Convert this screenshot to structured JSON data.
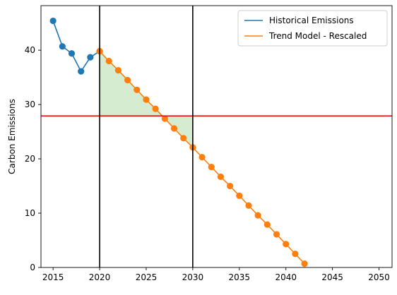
{
  "chart_data": {
    "type": "line",
    "ylabel": "Carbon Emissions",
    "xlim": [
      2013.7,
      2051.4
    ],
    "ylim": [
      0,
      48.2
    ],
    "xticks": [
      2015,
      2020,
      2025,
      2030,
      2035,
      2040,
      2045,
      2050
    ],
    "yticks": [
      0,
      10,
      20,
      30,
      40
    ],
    "grid": false,
    "legend": {
      "placement": "top-right",
      "entries": [
        "Historical Emissions",
        "Trend Model - Rescaled"
      ]
    },
    "series": [
      {
        "name": "Historical Emissions",
        "color": "#1f77b4",
        "marker": "circle",
        "x": [
          2015,
          2016,
          2017,
          2018,
          2019,
          2020
        ],
        "y": [
          45.4,
          40.7,
          39.4,
          36.1,
          38.7,
          39.8
        ]
      },
      {
        "name": "Trend Model - Rescaled",
        "color": "#ff7f0e",
        "marker": "circle",
        "x": [
          2020,
          2021,
          2022,
          2023,
          2024,
          2025,
          2026,
          2027,
          2028,
          2029,
          2030,
          2031,
          2032,
          2033,
          2034,
          2035,
          2036,
          2037,
          2038,
          2039,
          2040,
          2041,
          2042
        ],
        "y": [
          39.8,
          38.0,
          36.3,
          34.5,
          32.7,
          30.9,
          29.2,
          27.4,
          25.6,
          23.8,
          22.1,
          20.3,
          18.5,
          16.7,
          15.0,
          13.2,
          11.4,
          9.6,
          7.9,
          6.1,
          4.3,
          2.5,
          0.7
        ]
      }
    ],
    "reference_lines": [
      {
        "orientation": "horizontal",
        "value": 27.9,
        "color": "#e00000"
      },
      {
        "orientation": "vertical",
        "value": 2020,
        "color": "#000000"
      },
      {
        "orientation": "vertical",
        "value": 2030,
        "color": "#000000"
      }
    ],
    "shaded_region": {
      "x_from": 2020,
      "x_to": 2030,
      "between_series": "Trend Model - Rescaled",
      "and_value": 27.9,
      "color": "#d5ecd0"
    }
  }
}
